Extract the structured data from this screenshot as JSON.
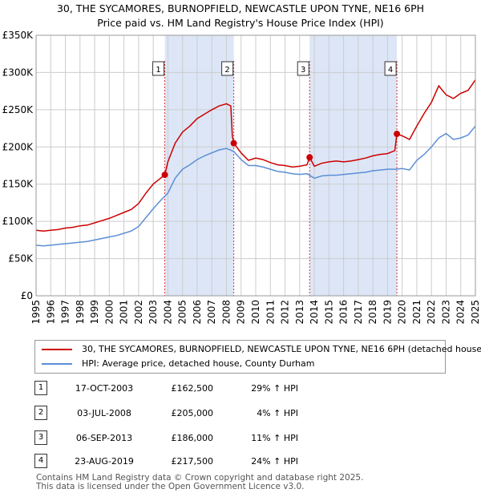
{
  "header": {
    "title_line1": "30, THE SYCAMORES, BURNOPFIELD, NEWCASTLE UPON TYNE, NE16 6PH",
    "title_line2": "Price paid vs. HM Land Registry's House Price Index (HPI)"
  },
  "chart_data": {
    "type": "line",
    "title": "30, THE SYCAMORES, BURNOPFIELD, NEWCASTLE UPON TYNE, NE16 6PH",
    "subtitle": "Price paid vs. HM Land Registry's House Price Index (HPI)",
    "xlabel": "",
    "ylabel": "",
    "xlim": [
      1995,
      2025
    ],
    "ylim": [
      0,
      350000
    ],
    "x_ticks": [
      "1995",
      "1996",
      "1997",
      "1998",
      "1999",
      "2000",
      "2001",
      "2002",
      "2003",
      "2004",
      "2005",
      "2006",
      "2007",
      "2008",
      "2009",
      "2010",
      "2011",
      "2012",
      "2013",
      "2014",
      "2015",
      "2016",
      "2017",
      "2018",
      "2019",
      "2020",
      "2021",
      "2022",
      "2023",
      "2024",
      "2025"
    ],
    "y_ticks": [
      {
        "value": 0,
        "label": "£0"
      },
      {
        "value": 50000,
        "label": "£50K"
      },
      {
        "value": 100000,
        "label": "£100K"
      },
      {
        "value": 150000,
        "label": "£150K"
      },
      {
        "value": 200000,
        "label": "£200K"
      },
      {
        "value": 250000,
        "label": "£250K"
      },
      {
        "value": 300000,
        "label": "£300K"
      },
      {
        "value": 350000,
        "label": "£350K"
      }
    ],
    "grid": true,
    "series": [
      {
        "name": "30, THE SYCAMORES, BURNOPFIELD, NEWCASTLE UPON TYNE, NE16 6PH (detached house)",
        "color": "#cc0000",
        "x": [
          1995.0,
          1995.5,
          1996.0,
          1996.5,
          1997.0,
          1997.5,
          1998.0,
          1998.5,
          1999.0,
          1999.5,
          2000.0,
          2000.5,
          2001.0,
          2001.5,
          2002.0,
          2002.5,
          2003.0,
          2003.5,
          2003.79,
          2004.0,
          2004.5,
          2005.0,
          2005.5,
          2006.0,
          2006.5,
          2007.0,
          2007.5,
          2008.0,
          2008.3,
          2008.4,
          2008.5,
          2009.0,
          2009.5,
          2010.0,
          2010.5,
          2011.0,
          2011.5,
          2012.0,
          2012.5,
          2013.0,
          2013.5,
          2013.68,
          2014.0,
          2014.5,
          2015.0,
          2015.5,
          2016.0,
          2016.5,
          2017.0,
          2017.5,
          2018.0,
          2018.5,
          2019.0,
          2019.5,
          2019.64,
          2020.0,
          2020.5,
          2021.0,
          2021.5,
          2022.0,
          2022.5,
          2023.0,
          2023.5,
          2024.0,
          2024.5,
          2025.0
        ],
        "y": [
          88000,
          87000,
          88000,
          89000,
          91000,
          92000,
          94000,
          95000,
          98000,
          101000,
          104000,
          108000,
          112000,
          116000,
          124000,
          138000,
          150000,
          158000,
          162500,
          180000,
          205000,
          220000,
          228000,
          238000,
          244000,
          250000,
          255000,
          258000,
          255000,
          215000,
          205000,
          192000,
          182000,
          185000,
          183000,
          179000,
          176000,
          175000,
          173000,
          174000,
          176000,
          186000,
          174000,
          178000,
          180000,
          181000,
          180000,
          181000,
          183000,
          185000,
          188000,
          190000,
          191000,
          195000,
          217500,
          215000,
          210000,
          228000,
          245000,
          260000,
          282000,
          270000,
          265000,
          272000,
          276000,
          290000
        ]
      },
      {
        "name": "HPI: Average price, detached house, County Durham",
        "color": "#5b8fd6",
        "x": [
          1995.0,
          1995.5,
          1996.0,
          1996.5,
          1997.0,
          1997.5,
          1998.0,
          1998.5,
          1999.0,
          1999.5,
          2000.0,
          2000.5,
          2001.0,
          2001.5,
          2002.0,
          2002.5,
          2003.0,
          2003.5,
          2004.0,
          2004.5,
          2005.0,
          2005.5,
          2006.0,
          2006.5,
          2007.0,
          2007.5,
          2008.0,
          2008.5,
          2009.0,
          2009.5,
          2010.0,
          2010.5,
          2011.0,
          2011.5,
          2012.0,
          2012.5,
          2013.0,
          2013.5,
          2014.0,
          2014.5,
          2015.0,
          2015.5,
          2016.0,
          2016.5,
          2017.0,
          2017.5,
          2018.0,
          2018.5,
          2019.0,
          2019.5,
          2020.0,
          2020.5,
          2021.0,
          2021.5,
          2022.0,
          2022.5,
          2023.0,
          2023.5,
          2024.0,
          2024.5,
          2025.0
        ],
        "y": [
          68000,
          67000,
          68000,
          69000,
          70000,
          71000,
          72000,
          73000,
          75000,
          77000,
          79000,
          81000,
          84000,
          87000,
          93000,
          105000,
          117000,
          128000,
          138000,
          158000,
          170000,
          176000,
          183000,
          188000,
          192000,
          196000,
          198000,
          194000,
          183000,
          175000,
          175000,
          173000,
          170000,
          167000,
          166000,
          164000,
          163000,
          164000,
          158000,
          161000,
          162000,
          162000,
          163000,
          164000,
          165000,
          166000,
          168000,
          169000,
          170000,
          170000,
          171000,
          169000,
          182000,
          190000,
          200000,
          212000,
          218000,
          210000,
          212000,
          216000,
          228000
        ]
      }
    ],
    "sale_markers": [
      {
        "label": "1",
        "x": 2003.79,
        "y": 162500
      },
      {
        "label": "2",
        "x": 2008.5,
        "y": 205000
      },
      {
        "label": "3",
        "x": 2013.68,
        "y": 186000
      },
      {
        "label": "4",
        "x": 2019.64,
        "y": 217500
      }
    ],
    "shaded_ranges": [
      [
        2003.79,
        2008.5
      ],
      [
        2013.68,
        2019.64
      ]
    ]
  },
  "legend": {
    "items": [
      {
        "label": "30, THE SYCAMORES, BURNOPFIELD, NEWCASTLE UPON TYNE, NE16 6PH (detached house)",
        "color": "#cc0000"
      },
      {
        "label": "HPI: Average price, detached house, County Durham",
        "color": "#5b8fd6"
      }
    ]
  },
  "transactions": [
    {
      "num": "1",
      "date": "17-OCT-2003",
      "price": "£162,500",
      "hpi": "29% ↑ HPI"
    },
    {
      "num": "2",
      "date": "03-JUL-2008",
      "price": "£205,000",
      "hpi": "4% ↑ HPI"
    },
    {
      "num": "3",
      "date": "06-SEP-2013",
      "price": "£186,000",
      "hpi": "11% ↑ HPI"
    },
    {
      "num": "4",
      "date": "23-AUG-2019",
      "price": "£217,500",
      "hpi": "24% ↑ HPI"
    }
  ],
  "footer": {
    "line1": "Contains HM Land Registry data © Crown copyright and database right 2025.",
    "line2": "This data is licensed under the Open Government Licence v3.0."
  }
}
